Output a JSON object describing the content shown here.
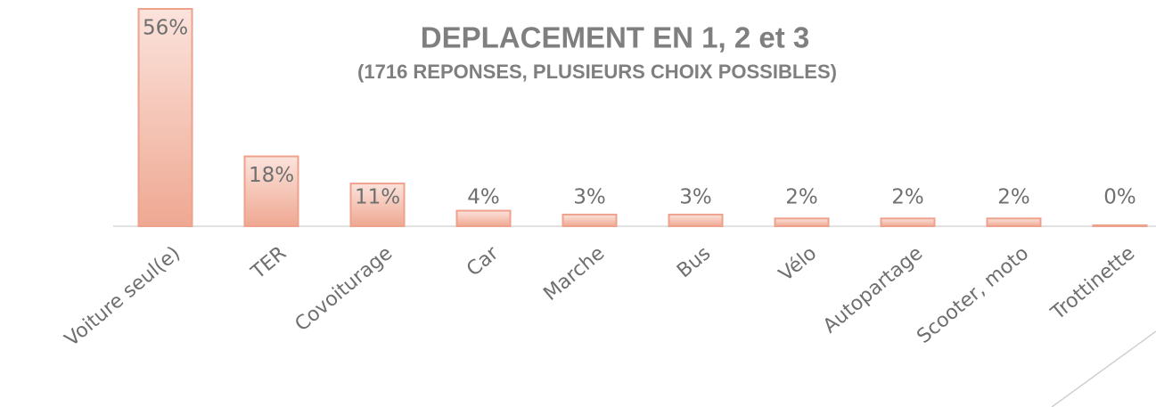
{
  "chart_data": {
    "type": "bar",
    "title": "DEPLACEMENT EN 1, 2 et 3",
    "subtitle": "(1716 REPONSES, PLUSIEURS CHOIX POSSIBLES)",
    "categories": [
      "Voiture seul(e)",
      "TER",
      "Covoiturage",
      "Car",
      "Marche",
      "Bus",
      "Vélo",
      "Autopartage",
      "Scooter, moto",
      "Trottinette"
    ],
    "values": [
      56,
      18,
      11,
      4,
      3,
      3,
      2,
      2,
      2,
      0
    ],
    "value_labels": [
      "56%",
      "18%",
      "11%",
      "4%",
      "3%",
      "3%",
      "2%",
      "2%",
      "2%",
      "0%"
    ],
    "color": "#eea28c"
  }
}
